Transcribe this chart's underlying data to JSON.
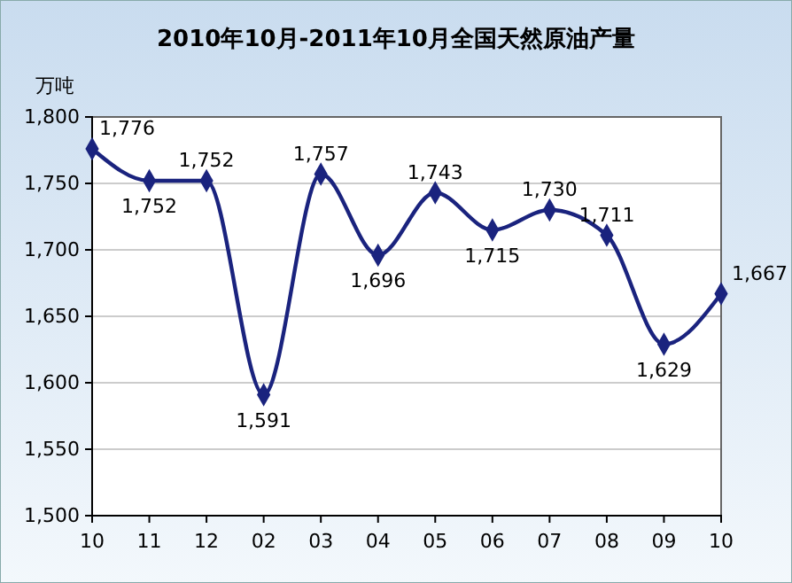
{
  "chart_data": {
    "type": "line",
    "title": "2010年10月-2011年10月全国天然原油产量",
    "ylabel": "万吨",
    "categories": [
      "10",
      "11",
      "12",
      "02",
      "03",
      "04",
      "05",
      "06",
      "07",
      "08",
      "09",
      "10"
    ],
    "series": [
      {
        "color": "#1a237e",
        "values": [
          1776,
          1752,
          1752,
          1591,
          1757,
          1696,
          1743,
          1715,
          1730,
          1711,
          1629,
          1667
        ],
        "value_labels": [
          "1,776",
          "1,752",
          "1,752",
          "1,591",
          "1,757",
          "1,696",
          "1,743",
          "1,715",
          "1,730",
          "1,711",
          "1,629",
          "1,667"
        ]
      }
    ],
    "ylim": [
      1500,
      1800
    ],
    "yticks": [
      {
        "value": 1500,
        "label": "1,500"
      },
      {
        "value": 1550,
        "label": "1,550"
      },
      {
        "value": 1600,
        "label": "1,600"
      },
      {
        "value": 1650,
        "label": "1,650"
      },
      {
        "value": 1700,
        "label": "1,700"
      },
      {
        "value": 1750,
        "label": "1,750"
      },
      {
        "value": 1800,
        "label": "1,800"
      }
    ],
    "grid": "y",
    "marker": "diamond",
    "line_style": "solid"
  }
}
